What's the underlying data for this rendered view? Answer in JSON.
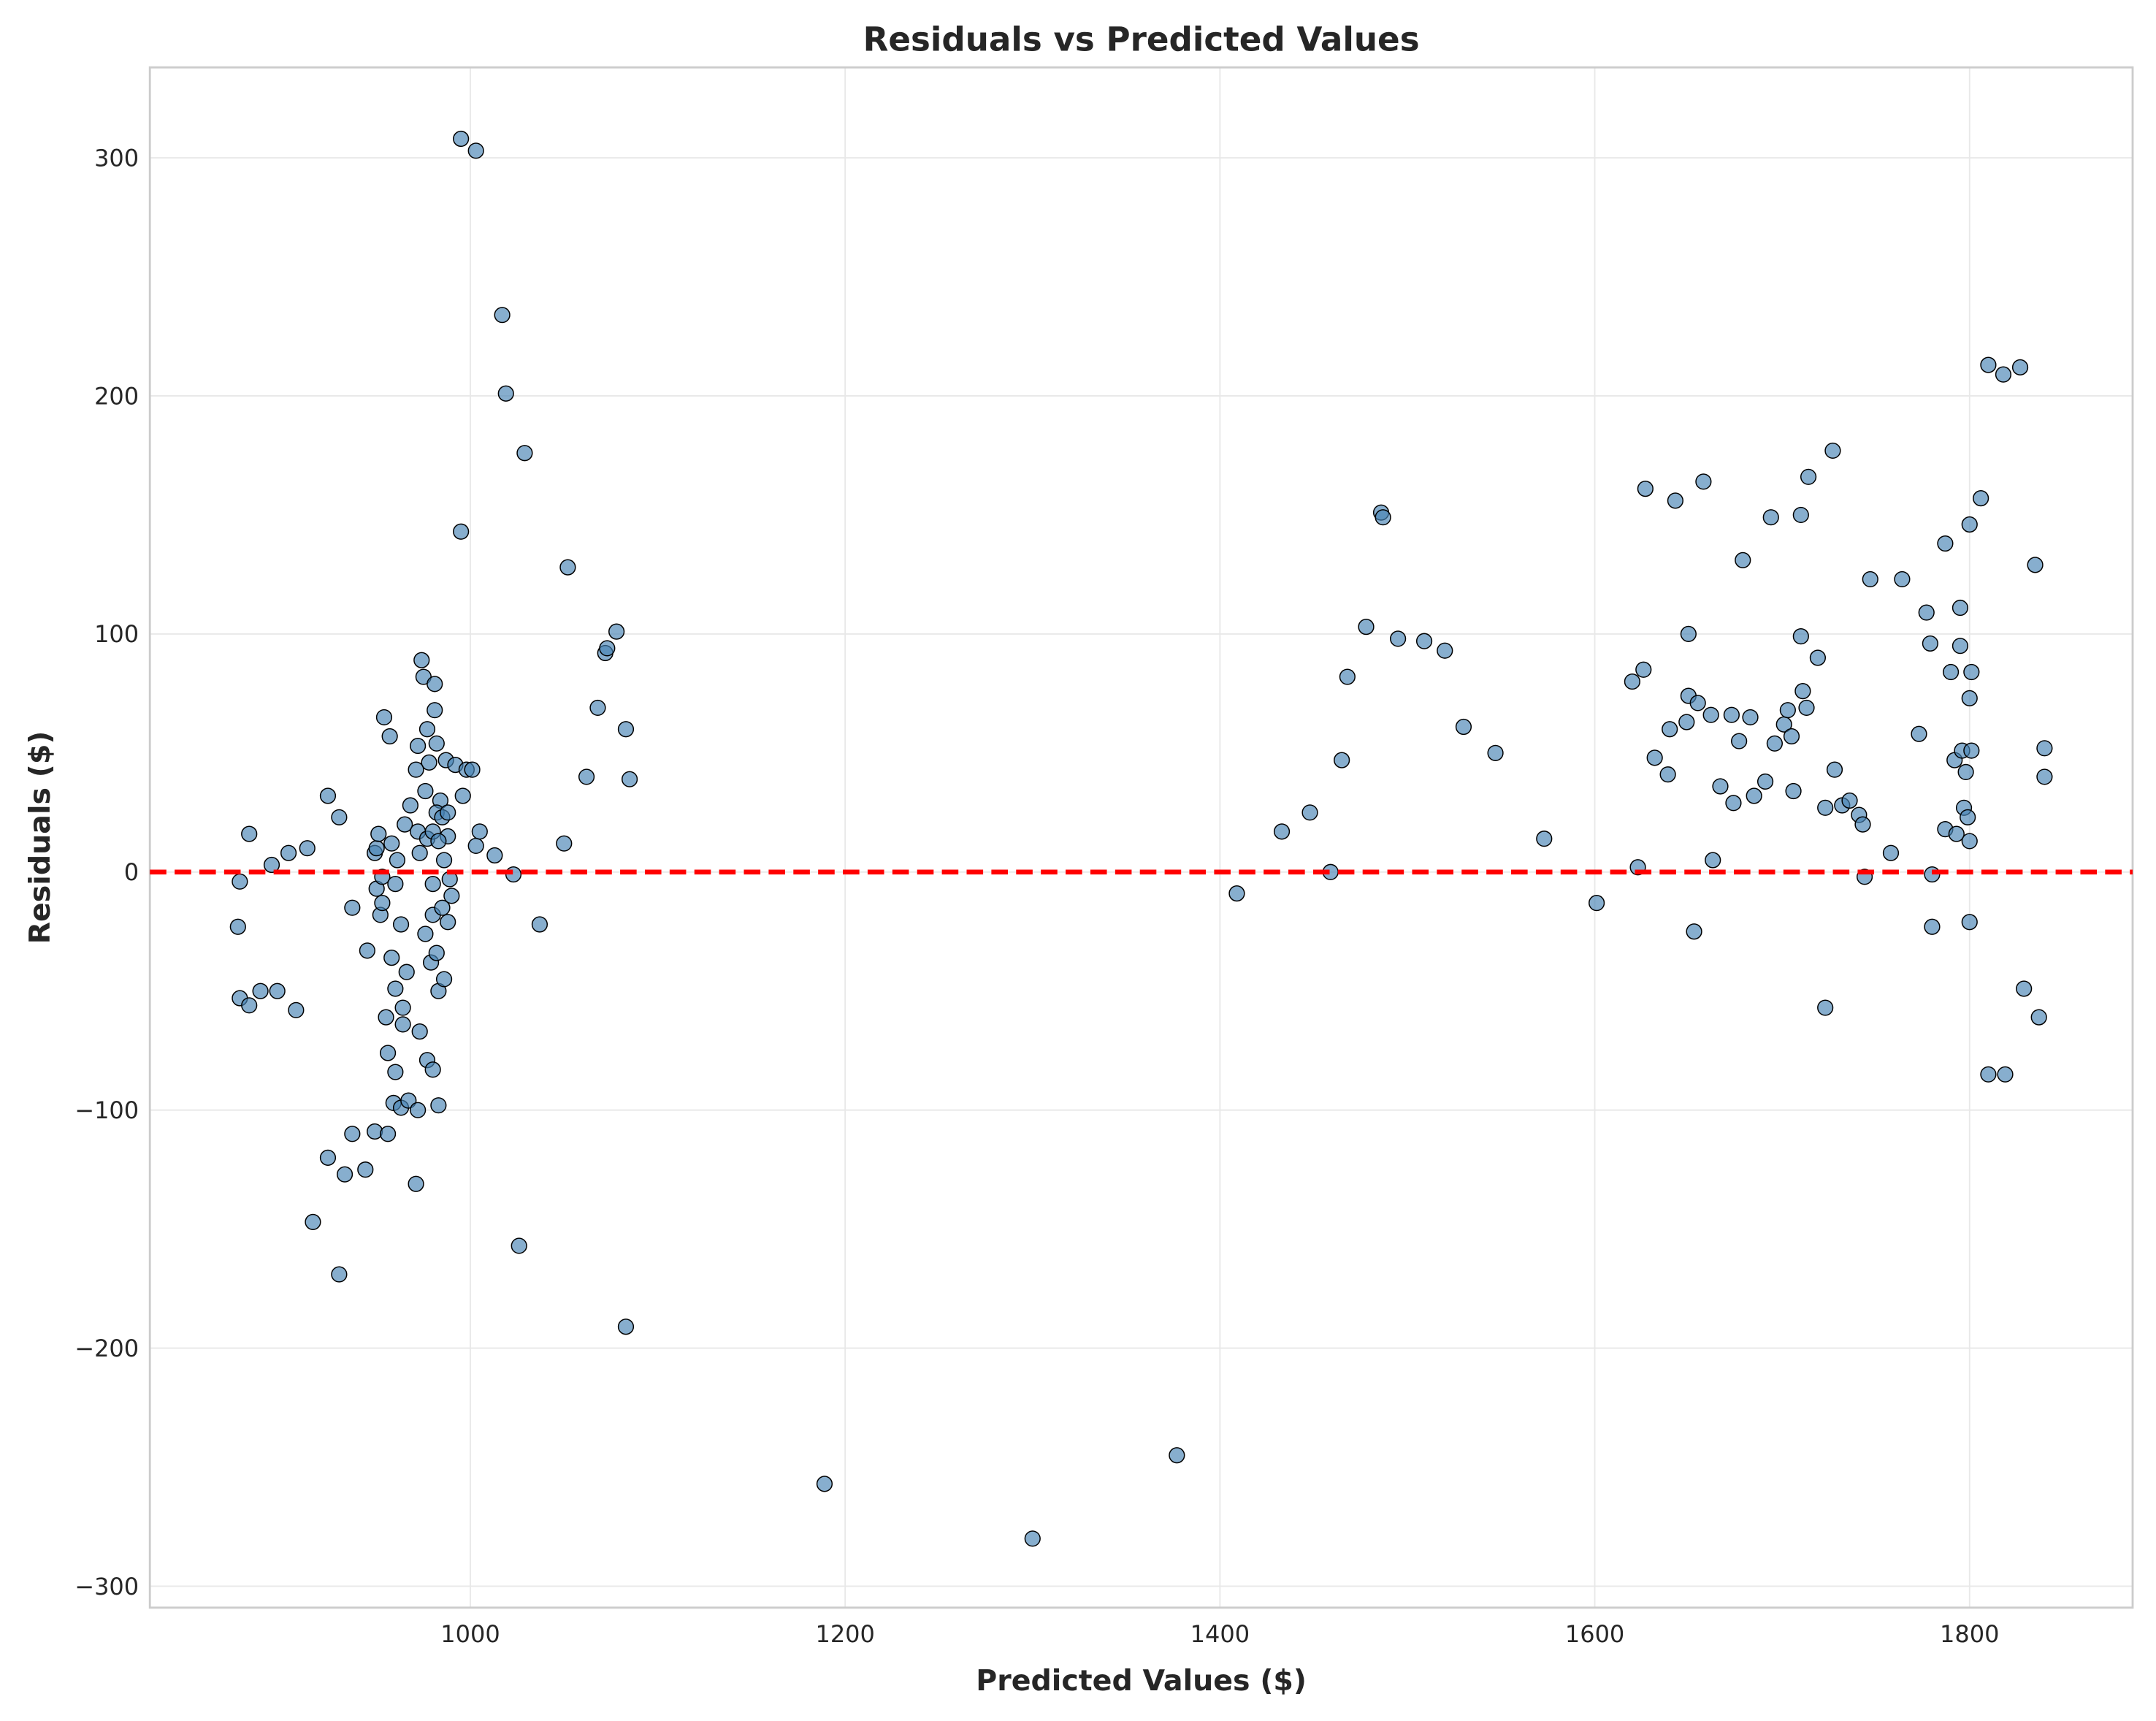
{
  "chart_data": {
    "type": "scatter",
    "title": "Residuals vs Predicted Values",
    "x_label": "Predicted Values ($)",
    "y_label": "Residuals ($)",
    "xlim": [
      829,
      1887
    ],
    "ylim": [
      -309,
      338
    ],
    "xticks": [
      1000,
      1200,
      1400,
      1600,
      1800
    ],
    "yticks": [
      {
        "value": -300,
        "label": "−300"
      },
      {
        "value": -200,
        "label": "−200"
      },
      {
        "value": -100,
        "label": "−100"
      },
      0,
      100,
      200,
      300
    ],
    "grid": true,
    "hline": 0,
    "hline_color": "#ff0000",
    "series": [
      {
        "color": "#4682b4",
        "x": [
          877,
          876,
          882,
          877,
          882,
          888,
          894,
          897,
          903,
          907,
          913,
          916,
          924,
          924,
          930,
          930,
          933,
          937,
          937,
          944,
          945,
          949,
          949,
          950,
          950,
          951,
          952,
          953,
          953,
          954,
          955,
          956,
          956,
          957,
          958,
          958,
          959,
          960,
          960,
          960,
          961,
          963,
          963,
          964,
          964,
          965,
          966,
          967,
          968,
          971,
          972,
          972,
          973,
          974,
          975,
          976,
          976,
          977,
          977,
          978,
          979,
          980,
          980,
          980,
          981,
          981,
          982,
          982,
          983,
          983,
          984,
          985,
          986,
          986,
          987,
          988,
          988,
          989,
          990,
          992,
          995,
          995,
          996,
          998,
          1001,
          1003,
          1003,
          1005,
          1013,
          1017,
          1019,
          1023,
          1026,
          1029,
          1037,
          1050,
          1052,
          1062,
          1068,
          1072,
          1073,
          1078,
          1083,
          1083,
          1085,
          972,
          971,
          977,
          973,
          980,
          982,
          983,
          985,
          988,
          1189,
          1300,
          1377,
          1409,
          1433,
          1448,
          1459,
          1465,
          1468,
          1478,
          1486,
          1487,
          1495,
          1509,
          1520,
          1530,
          1547,
          1573,
          1601,
          1620,
          1623,
          1626,
          1627,
          1632,
          1639,
          1640,
          1643,
          1649,
          1650,
          1650,
          1653,
          1655,
          1658,
          1662,
          1663,
          1667,
          1673,
          1674,
          1677,
          1679,
          1683,
          1685,
          1691,
          1694,
          1696,
          1701,
          1703,
          1705,
          1706,
          1710,
          1710,
          1711,
          1713,
          1714,
          1719,
          1723,
          1723,
          1727,
          1728,
          1732,
          1736,
          1741,
          1743,
          1744,
          1747,
          1758,
          1764,
          1773,
          1777,
          1779,
          1780,
          1780,
          1787,
          1787,
          1790,
          1792,
          1793,
          1795,
          1795,
          1796,
          1797,
          1798,
          1800,
          1799,
          1800,
          1800,
          1800,
          1801,
          1801,
          1806,
          1810,
          1810,
          1818,
          1819,
          1827,
          1829,
          1835,
          1837,
          1840,
          1840
        ],
        "values": [
          -4,
          -23,
          16,
          -53,
          -56,
          -50,
          3,
          -50,
          8,
          -58,
          10,
          -147,
          32,
          -120,
          -169,
          23,
          -127,
          -110,
          -15,
          -125,
          -33,
          8,
          -109,
          -7,
          10,
          16,
          -18,
          -2,
          -13,
          65,
          -61,
          -76,
          -110,
          57,
          12,
          -36,
          -97,
          -84,
          -5,
          -49,
          5,
          -99,
          -22,
          -57,
          -64,
          20,
          -42,
          -96,
          28,
          -131,
          53,
          17,
          -67,
          89,
          82,
          34,
          -26,
          -79,
          60,
          46,
          -38,
          -5,
          -18,
          -83,
          79,
          68,
          54,
          -34,
          -98,
          -50,
          30,
          -15,
          -45,
          5,
          47,
          -21,
          15,
          -3,
          -10,
          45,
          308,
          143,
          32,
          43,
          43,
          303,
          11,
          17,
          7,
          234,
          201,
          -1,
          -157,
          176,
          -22,
          12,
          128,
          40,
          69,
          92,
          94,
          101,
          60,
          -191,
          39,
          -100,
          43,
          14,
          8,
          17,
          25,
          13,
          23,
          25,
          -257,
          -280,
          -245,
          -9,
          17,
          25,
          0,
          47,
          82,
          103,
          151,
          149,
          98,
          97,
          93,
          61,
          50,
          14,
          -13,
          80,
          2,
          85,
          161,
          48,
          41,
          60,
          156,
          63,
          100,
          74,
          -25,
          71,
          164,
          66,
          5,
          36,
          66,
          29,
          55,
          131,
          65,
          32,
          38,
          149,
          54,
          62,
          68,
          57,
          34,
          99,
          150,
          76,
          69,
          166,
          90,
          27,
          -57,
          177,
          43,
          28,
          30,
          24,
          20,
          -2,
          123,
          8,
          123,
          58,
          109,
          96,
          -1,
          -23,
          138,
          18,
          84,
          47,
          16,
          111,
          95,
          51,
          27,
          42,
          73,
          23,
          13,
          146,
          -21,
          84,
          51,
          157,
          -85,
          213,
          209,
          -85,
          212,
          -49,
          129,
          -61,
          40,
          52
        ]
      }
    ]
  }
}
